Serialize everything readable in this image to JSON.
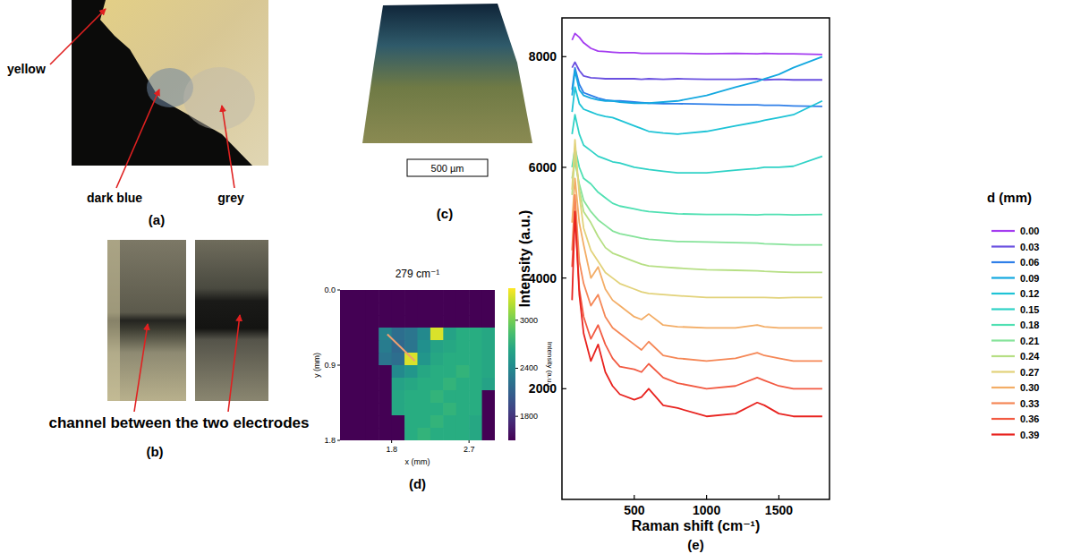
{
  "photos": {
    "a": {
      "label": "(a)",
      "annotations": [
        "yellow",
        "dark blue",
        "grey"
      ]
    },
    "b": {
      "label": "(b)",
      "annotation": "channel between the two electrodes"
    },
    "c": {
      "label": "(c)",
      "scale_bar": "500 µm"
    }
  },
  "chart_data": [
    {
      "type": "heatmap",
      "panel": "(d)",
      "title": "279 cm⁻¹",
      "x_label": "x (mm)",
      "y_label": "y (mm)",
      "xlim": [
        1.2,
        3.0
      ],
      "ylim": [
        1.8,
        0
      ],
      "xticks": [
        1.8,
        2.7
      ],
      "yticks": [
        {
          "value": 0,
          "label": "0.0"
        },
        0.9,
        1.8
      ],
      "cells": [
        [
          1500,
          1500,
          1500,
          1500,
          1500,
          1500,
          1500,
          1500,
          1500,
          1500,
          1500,
          1500
        ],
        [
          1500,
          1500,
          1500,
          1500,
          1500,
          1500,
          1500,
          1500,
          1500,
          1500,
          1500,
          1500
        ],
        [
          1500,
          1500,
          1500,
          1500,
          1500,
          1500,
          1500,
          1500,
          1500,
          1500,
          1500,
          1500
        ],
        [
          1500,
          1500,
          1500,
          2350,
          2200,
          2250,
          2400,
          3300,
          2600,
          2700,
          2700,
          2650
        ],
        [
          1500,
          1500,
          1500,
          2300,
          2150,
          2250,
          2450,
          2600,
          2650,
          2700,
          2700,
          2650
        ],
        [
          1500,
          1500,
          1500,
          2250,
          2200,
          3300,
          2500,
          2650,
          2700,
          2700,
          2700,
          2650
        ],
        [
          1500,
          1500,
          1500,
          1500,
          2400,
          2500,
          2650,
          2700,
          2700,
          2750,
          2700,
          2650
        ],
        [
          1500,
          1500,
          1500,
          1500,
          2600,
          2650,
          2700,
          2700,
          2750,
          2700,
          2700,
          2600
        ],
        [
          1500,
          1500,
          1500,
          1500,
          2650,
          2700,
          2700,
          2750,
          2700,
          2700,
          2700,
          1500
        ],
        [
          1500,
          1500,
          1500,
          1500,
          2650,
          2700,
          2700,
          2700,
          2750,
          2700,
          2700,
          1500
        ],
        [
          1500,
          1500,
          1500,
          1500,
          1500,
          2700,
          2700,
          2750,
          2700,
          2700,
          2650,
          1500
        ],
        [
          1500,
          1500,
          1500,
          1500,
          1500,
          2700,
          2750,
          2700,
          2700,
          2700,
          2650,
          1500
        ]
      ],
      "colorbar": {
        "label": "Intensity (a.u.)",
        "lim": [
          1500,
          3400
        ],
        "ticks": [
          1800,
          2400,
          3000
        ]
      },
      "profile_line": {
        "x": [
          1.75,
          2.07
        ],
        "y": [
          0.53,
          0.85
        ]
      }
    },
    {
      "type": "line",
      "panel": "(e)",
      "x_label": "Raman shift (cm⁻¹)",
      "y_label": "Intensity (a.u.)",
      "xlim": [
        0,
        1850
      ],
      "ylim": [
        0,
        8700
      ],
      "xticks": [
        500,
        1000,
        1500
      ],
      "yticks": [
        2000,
        4000,
        6000,
        8000
      ],
      "legend": "right",
      "legend_title": "d (mm)",
      "x": [
        70,
        90,
        120,
        150,
        200,
        250,
        300,
        350,
        400,
        500,
        550,
        600,
        700,
        800,
        1000,
        1200,
        1350,
        1400,
        1500,
        1600,
        1800
      ],
      "series": [
        {
          "name": "0.00",
          "color": "#a43cf0",
          "values": [
            8300,
            8420,
            8350,
            8250,
            8150,
            8100,
            8090,
            8080,
            8070,
            8070,
            8060,
            8060,
            8060,
            8060,
            8050,
            8060,
            8050,
            8060,
            8050,
            8050,
            8040
          ]
        },
        {
          "name": "0.03",
          "color": "#6a50e0",
          "values": [
            7800,
            7900,
            7750,
            7650,
            7620,
            7610,
            7600,
            7600,
            7600,
            7600,
            7590,
            7600,
            7590,
            7600,
            7590,
            7590,
            7600,
            7580,
            7590,
            7580,
            7580
          ]
        },
        {
          "name": "0.06",
          "color": "#2f7fe8",
          "values": [
            7400,
            7800,
            7500,
            7350,
            7300,
            7250,
            7220,
            7200,
            7200,
            7180,
            7170,
            7160,
            7150,
            7150,
            7140,
            7130,
            7130,
            7120,
            7120,
            7110,
            7100
          ]
        },
        {
          "name": "0.09",
          "color": "#13a8e0",
          "values": [
            7300,
            7750,
            7400,
            7300,
            7250,
            7220,
            7200,
            7200,
            7180,
            7160,
            7160,
            7160,
            7180,
            7200,
            7300,
            7450,
            7550,
            7600,
            7680,
            7800,
            8000
          ]
        },
        {
          "name": "0.12",
          "color": "#1ec3d6",
          "values": [
            7000,
            7450,
            7150,
            7050,
            7000,
            6950,
            6920,
            6900,
            6850,
            6750,
            6700,
            6650,
            6620,
            6600,
            6650,
            6750,
            6820,
            6850,
            6900,
            6950,
            7200
          ]
        },
        {
          "name": "0.15",
          "color": "#2fd2c6",
          "values": [
            6600,
            6950,
            6600,
            6400,
            6300,
            6200,
            6150,
            6100,
            6080,
            6000,
            5980,
            5960,
            5930,
            5900,
            5900,
            5950,
            5980,
            6000,
            6000,
            6020,
            6200
          ]
        },
        {
          "name": "0.18",
          "color": "#4fe0b2",
          "values": [
            6000,
            6350,
            6000,
            5800,
            5700,
            5550,
            5450,
            5350,
            5300,
            5250,
            5220,
            5200,
            5180,
            5160,
            5150,
            5150,
            5140,
            5150,
            5150,
            5140,
            5150
          ]
        },
        {
          "name": "0.21",
          "color": "#86e39a",
          "values": [
            5800,
            6100,
            5700,
            5400,
            5200,
            5050,
            4950,
            4850,
            4800,
            4750,
            4720,
            4700,
            4680,
            4660,
            4650,
            4640,
            4630,
            4620,
            4610,
            4600,
            4600
          ]
        },
        {
          "name": "0.24",
          "color": "#b6df84",
          "values": [
            5500,
            6250,
            5600,
            5200,
            5000,
            4750,
            4550,
            4450,
            4400,
            4300,
            4250,
            4220,
            4200,
            4180,
            4150,
            4140,
            4130,
            4120,
            4110,
            4100,
            4100
          ]
        },
        {
          "name": "0.27",
          "color": "#e2d27a",
          "values": [
            5600,
            6500,
            5500,
            4900,
            4500,
            4300,
            4100,
            4000,
            3900,
            3800,
            3750,
            3720,
            3700,
            3680,
            3650,
            3650,
            3650,
            3650,
            3640,
            3650,
            3650
          ]
        },
        {
          "name": "0.30",
          "color": "#f3ad66",
          "values": [
            5000,
            5800,
            5000,
            4600,
            4000,
            4200,
            3800,
            3600,
            3500,
            3300,
            3250,
            3350,
            3150,
            3120,
            3100,
            3100,
            3150,
            3120,
            3100,
            3100,
            3100
          ]
        },
        {
          "name": "0.33",
          "color": "#f58756",
          "values": [
            4500,
            5500,
            4300,
            3900,
            3500,
            3700,
            3300,
            3100,
            3000,
            2800,
            2700,
            2850,
            2600,
            2550,
            2500,
            2550,
            2650,
            2600,
            2550,
            2500,
            2500
          ]
        },
        {
          "name": "0.36",
          "color": "#f25a42",
          "values": [
            4200,
            5200,
            3800,
            3300,
            2900,
            3150,
            2800,
            2550,
            2400,
            2350,
            2300,
            2450,
            2200,
            2100,
            2000,
            2050,
            2200,
            2150,
            2050,
            2000,
            2000
          ]
        },
        {
          "name": "0.39",
          "color": "#e8231f",
          "values": [
            3600,
            5200,
            3700,
            3000,
            2500,
            2800,
            2300,
            2050,
            1900,
            1800,
            1850,
            2000,
            1700,
            1650,
            1500,
            1550,
            1750,
            1700,
            1550,
            1500,
            1500
          ]
        }
      ]
    }
  ]
}
